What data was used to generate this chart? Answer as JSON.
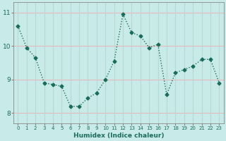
{
  "x": [
    0,
    1,
    2,
    3,
    4,
    5,
    6,
    7,
    8,
    9,
    10,
    11,
    12,
    13,
    14,
    15,
    16,
    17,
    18,
    19,
    20,
    21,
    22,
    23
  ],
  "y": [
    10.6,
    9.95,
    9.65,
    8.9,
    8.85,
    8.8,
    8.2,
    8.2,
    8.45,
    8.6,
    9.0,
    9.55,
    10.95,
    10.4,
    10.3,
    9.95,
    10.05,
    8.55,
    9.2,
    9.3,
    9.4,
    9.6,
    9.6,
    8.9
  ],
  "xlabel": "Humidex (Indice chaleur)",
  "xlim": [
    -0.5,
    23.5
  ],
  "ylim": [
    7.7,
    11.3
  ],
  "yticks": [
    8,
    9,
    10,
    11
  ],
  "xticks": [
    0,
    1,
    2,
    3,
    4,
    5,
    6,
    7,
    8,
    9,
    10,
    11,
    12,
    13,
    14,
    15,
    16,
    17,
    18,
    19,
    20,
    21,
    22,
    23
  ],
  "line_color": "#1a6b5a",
  "bg_color": "#c8eae8",
  "grid_color_h": "#e8b8b8",
  "grid_color_v": "#b8d8d5",
  "marker": "D",
  "markersize": 2.5,
  "linewidth": 1.0
}
